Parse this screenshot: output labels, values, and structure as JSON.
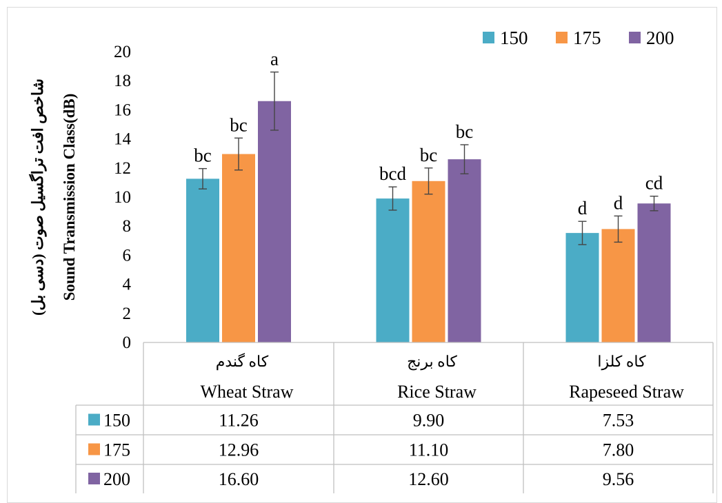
{
  "chart_data": {
    "type": "bar",
    "title": "",
    "ylabel_en": "Sound Transmission Class(dB)",
    "ylabel_fa": "شاخص افت تراگسیل صوت (دسی بل)",
    "ylim": [
      0,
      20
    ],
    "yticks": [
      "0",
      "2",
      "4",
      "6",
      "8",
      "10",
      "12",
      "14",
      "16",
      "18",
      "20"
    ],
    "grid": false,
    "legend_position": "top-right",
    "categories": [
      {
        "fa": "کاه گندم",
        "en": "Wheat Straw"
      },
      {
        "fa": "کاه برنج",
        "en": "Rice Straw"
      },
      {
        "fa": "کاه کلزا",
        "en": "Rapeseed Straw"
      }
    ],
    "series": [
      {
        "name": "150",
        "color": "#4bacc6",
        "values": [
          11.26,
          9.9,
          7.53
        ],
        "errors": [
          0.7,
          0.8,
          0.8
        ],
        "labels": [
          "bc",
          "bcd",
          "d"
        ]
      },
      {
        "name": "175",
        "color": "#f79646",
        "values": [
          12.96,
          11.1,
          7.8
        ],
        "errors": [
          1.1,
          0.9,
          0.9
        ],
        "labels": [
          "bc",
          "bc",
          "d"
        ]
      },
      {
        "name": "200",
        "color": "#8064a2",
        "values": [
          16.6,
          12.6,
          9.56
        ],
        "errors": [
          2.0,
          1.0,
          0.5
        ],
        "labels": [
          "a",
          "bc",
          "cd"
        ]
      }
    ],
    "table": {
      "rows": [
        {
          "name": "150",
          "cells": [
            "11.26",
            "9.90",
            "7.53"
          ]
        },
        {
          "name": "175",
          "cells": [
            "12.96",
            "11.10",
            "7.80"
          ]
        },
        {
          "name": "200",
          "cells": [
            "16.60",
            "12.60",
            "9.56"
          ]
        }
      ]
    }
  }
}
